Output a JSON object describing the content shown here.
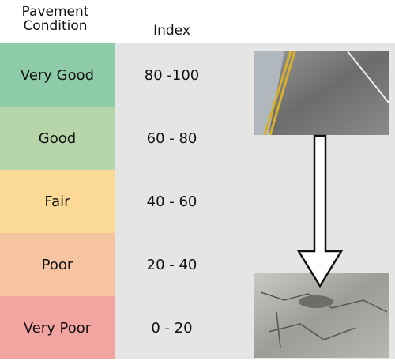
{
  "header": {
    "condition": [
      "Pavement",
      "Condition"
    ],
    "index": "Index"
  },
  "rows": [
    [
      "Very Good",
      "80 -100"
    ],
    [
      "Good",
      "60 - 80"
    ],
    [
      "Fair",
      "40 - 60"
    ],
    [
      "Poor",
      "20 - 40"
    ],
    [
      "Very Poor",
      "0 - 20"
    ]
  ]
}
